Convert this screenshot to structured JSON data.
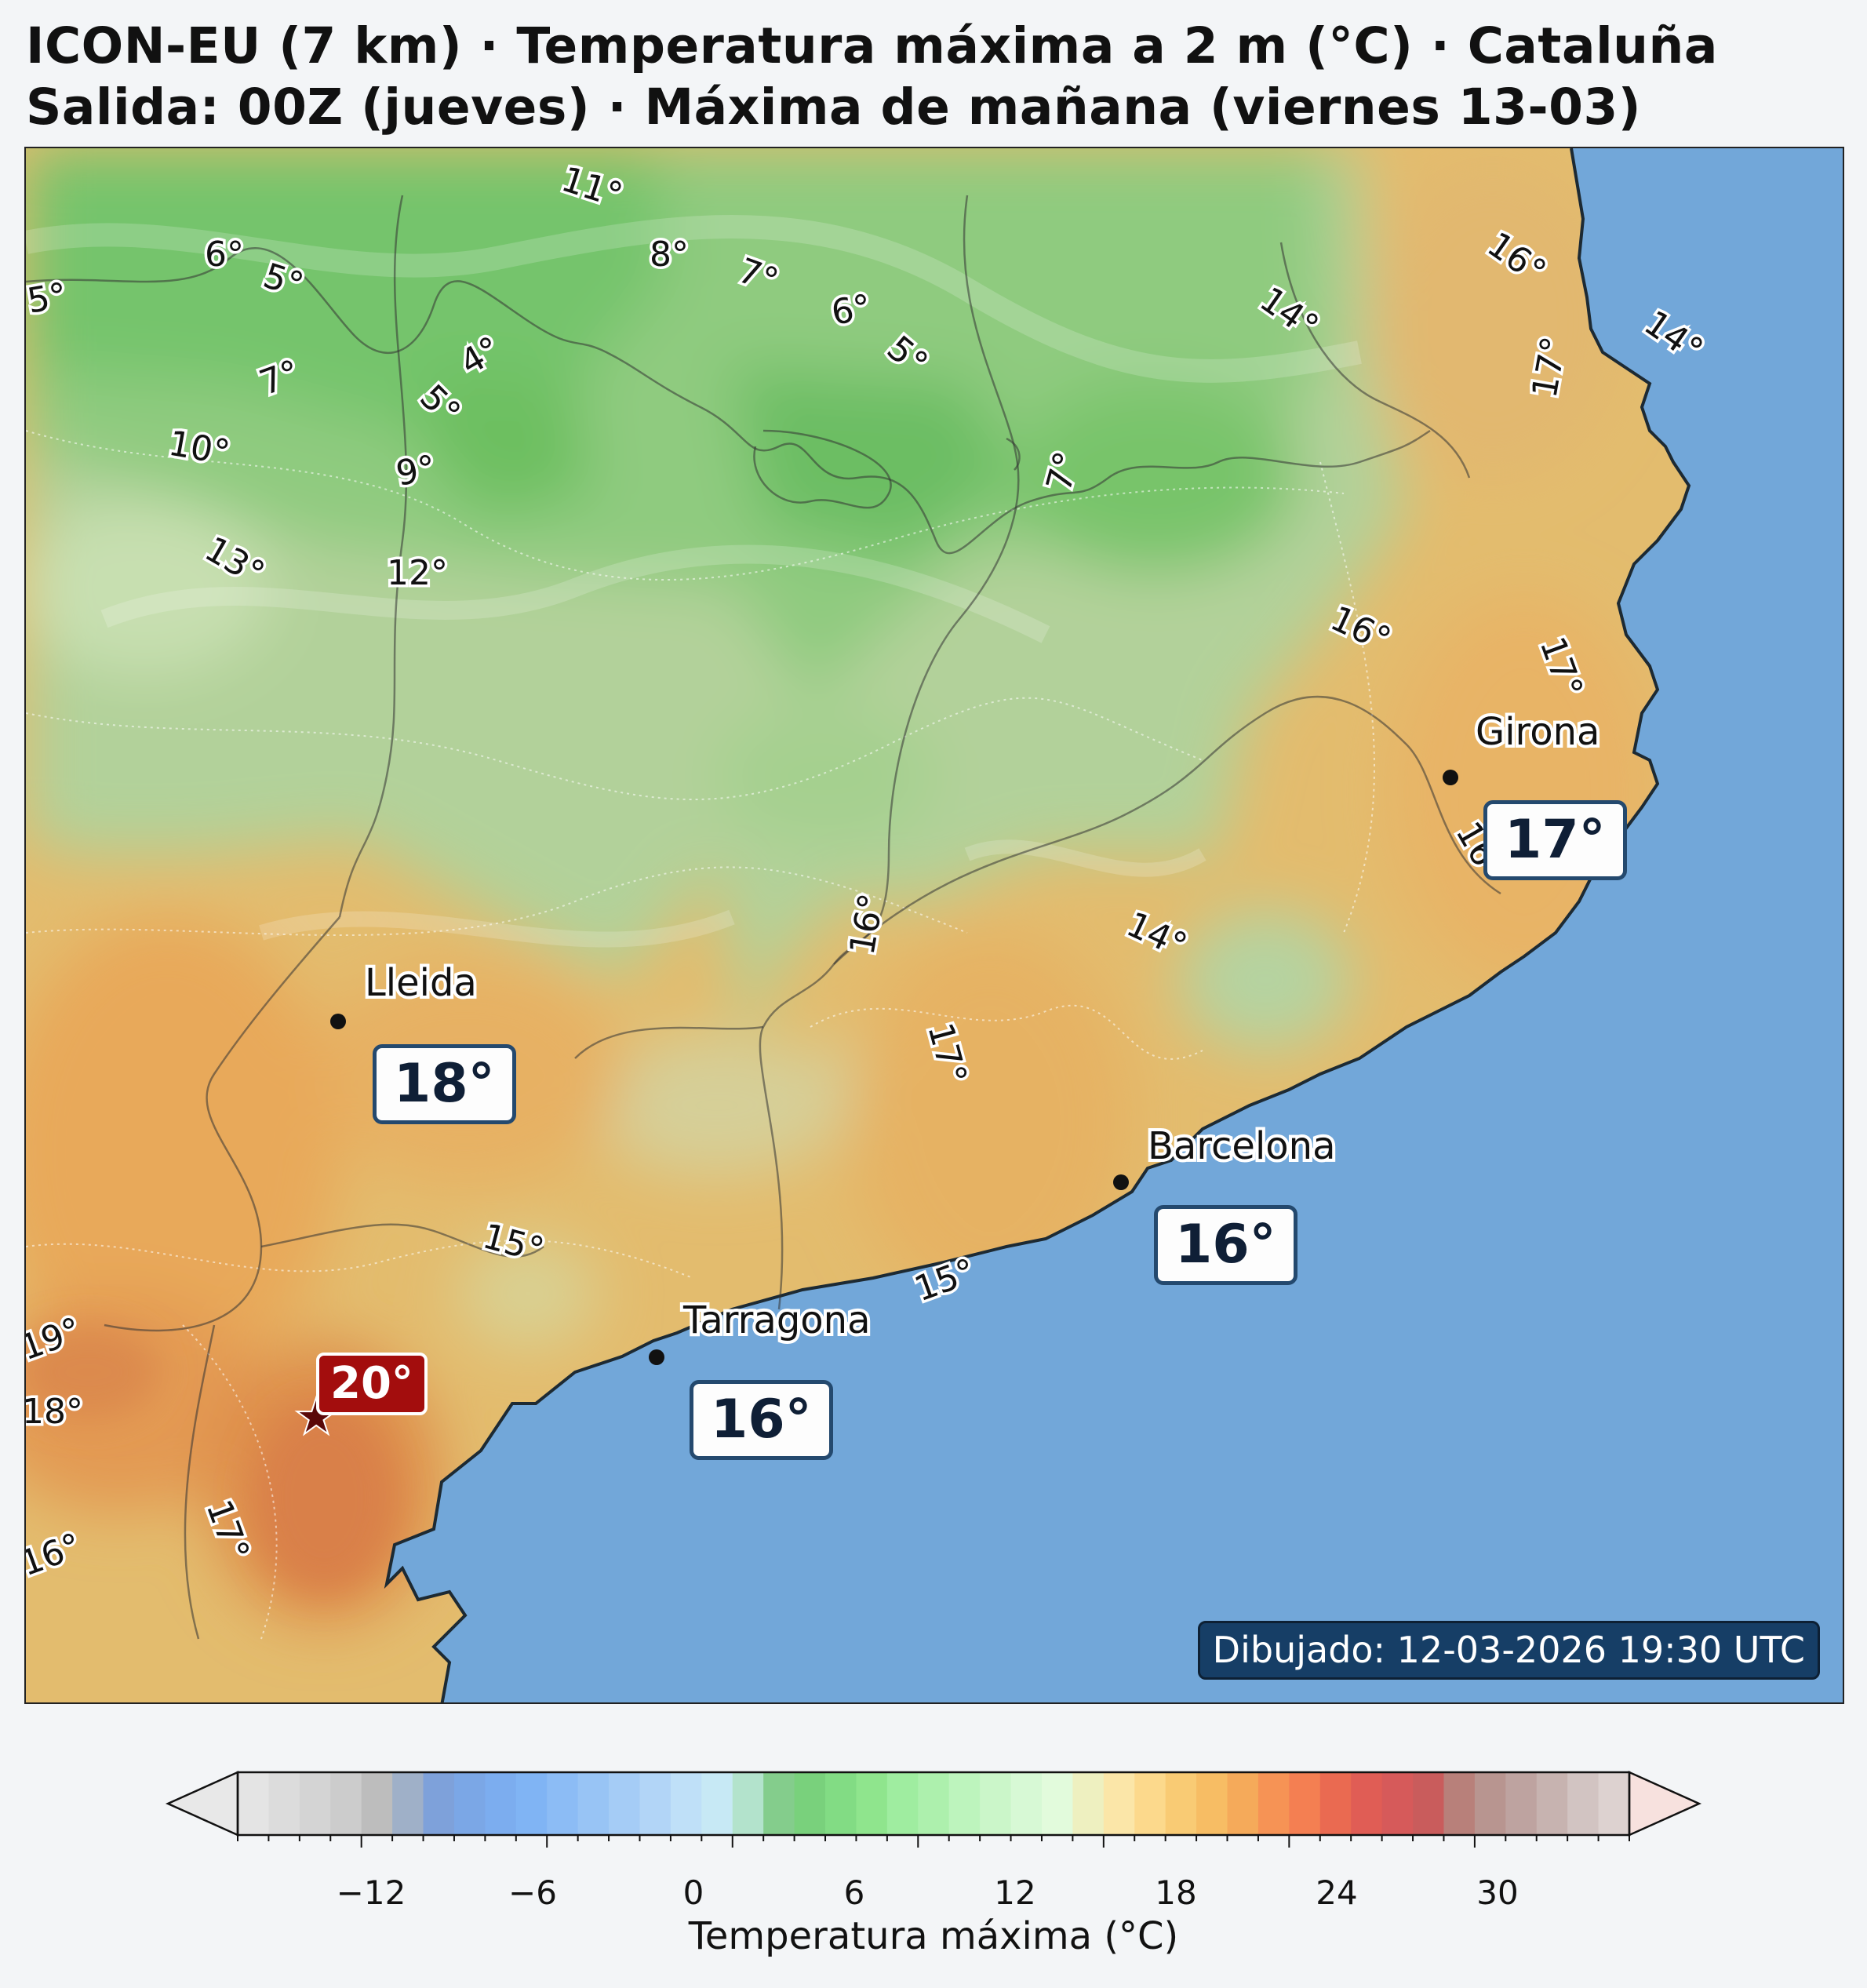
{
  "title": {
    "line1": "ICON-EU (7 km) · Temperatura máxima a 2 m (°C) · Cataluña",
    "line2": "Salida: 00Z (jueves) · Máxima de mañana (viernes 13-03)"
  },
  "cities": [
    {
      "name": "Lleida",
      "temp": "18°"
    },
    {
      "name": "Barcelona",
      "temp": "16°"
    },
    {
      "name": "Tarragona",
      "temp": "16°"
    },
    {
      "name": "Girona",
      "temp": "17°"
    }
  ],
  "max_marker": {
    "temp": "20°",
    "icon": "star-icon",
    "color": "#a30d0d"
  },
  "contour_labels": [
    "11°",
    "6°",
    "5°",
    "5°",
    "8°",
    "7°",
    "6°",
    "5°",
    "4°",
    "5°",
    "7°",
    "10°",
    "9°",
    "13°",
    "12°",
    "7°",
    "14°",
    "16°",
    "17°",
    "14°",
    "16°",
    "17°",
    "16°",
    "16°",
    "17°",
    "14°",
    "15°",
    "15°",
    "19°",
    "18°",
    "17°",
    "16°"
  ],
  "drawn_label": "Dibujado: 12-03-2026 19:30 UTC",
  "colorbar": {
    "label": "Temperatura máxima (°C)",
    "ticks": [
      "−12",
      "−6",
      "0",
      "6",
      "12",
      "18",
      "24",
      "30"
    ],
    "colors": [
      "#e4e4e4",
      "#dcdcdc",
      "#d4d4d4",
      "#cccccc",
      "#bdbdbd",
      "#9fb0c8",
      "#7ea1da",
      "#7ba7e6",
      "#7cadef",
      "#80b4f4",
      "#8cbcf5",
      "#98c4f5",
      "#a5ccf6",
      "#b2d5f7",
      "#bfe0f8",
      "#c7e9f5",
      "#b3e3cc",
      "#84cd8c",
      "#79d17c",
      "#82dc84",
      "#8fe58d",
      "#9feda0",
      "#adf0ad",
      "#bdf4bd",
      "#cbf6c9",
      "#d7f9d5",
      "#e2fbdc",
      "#eef0c0",
      "#fbe6a8",
      "#fcd98c",
      "#f9cb74",
      "#f7bd64",
      "#f5aa5a",
      "#f69355",
      "#f47f52",
      "#ea6a51",
      "#e05d55",
      "#d65a5a",
      "#c95c5c",
      "#b8807a",
      "#b89590",
      "#bea3a0",
      "#c7b3b0",
      "#d2c4c2",
      "#ddd2d0"
    ],
    "under_color": "#e8e8e8",
    "over_color": "#f7e1de"
  },
  "colors": {
    "sea": "#72a7d9",
    "accent": "#24496e",
    "max": "#a30d0d"
  }
}
